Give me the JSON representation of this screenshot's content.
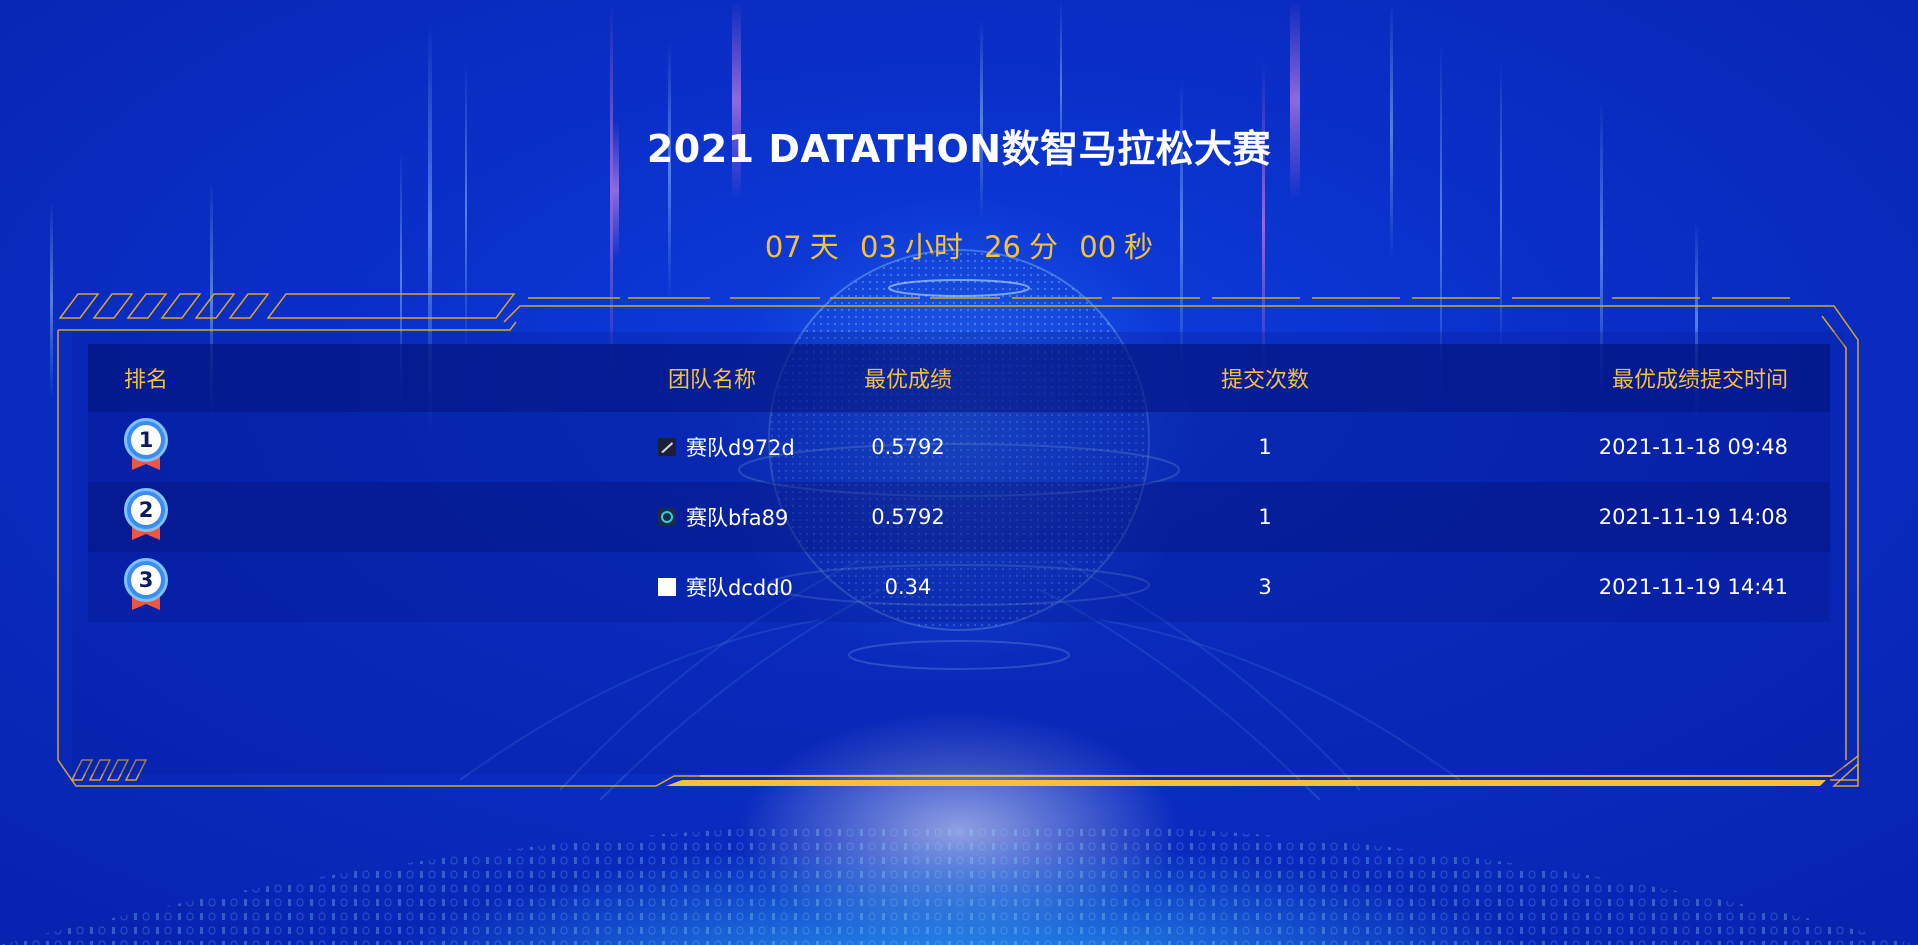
{
  "header": {
    "title": "2021 DATATHON数智马拉松大赛"
  },
  "countdown": {
    "days": "07",
    "days_unit": "天",
    "hours": "03",
    "hours_unit": "小时",
    "minutes": "26",
    "minutes_unit": "分",
    "seconds": "00",
    "seconds_unit": "秒"
  },
  "leaderboard": {
    "columns": {
      "rank": "排名",
      "team": "团队名称",
      "score": "最优成绩",
      "submissions": "提交次数",
      "time": "最优成绩提交时间"
    },
    "rows": [
      {
        "rank": "1",
        "team_icon": "dark-square-icon",
        "team": "赛队d972d",
        "score": "0.5792",
        "submissions": "1",
        "time": "2021-11-18 09:48"
      },
      {
        "rank": "2",
        "team_icon": "dark-square-icon",
        "team": "赛队bfa89",
        "score": "0.5792",
        "submissions": "1",
        "time": "2021-11-19 14:08"
      },
      {
        "rank": "3",
        "team_icon": "white-square-icon",
        "team": "赛队dcdd0",
        "score": "0.34",
        "submissions": "3",
        "time": "2021-11-19 14:41"
      }
    ]
  },
  "colors": {
    "accent": "#f6c13a",
    "frame": "#d8a628",
    "background": "#0a2fc8",
    "medal_blue": "#3a8cf0",
    "medal_ribbon": "#f0563e"
  }
}
